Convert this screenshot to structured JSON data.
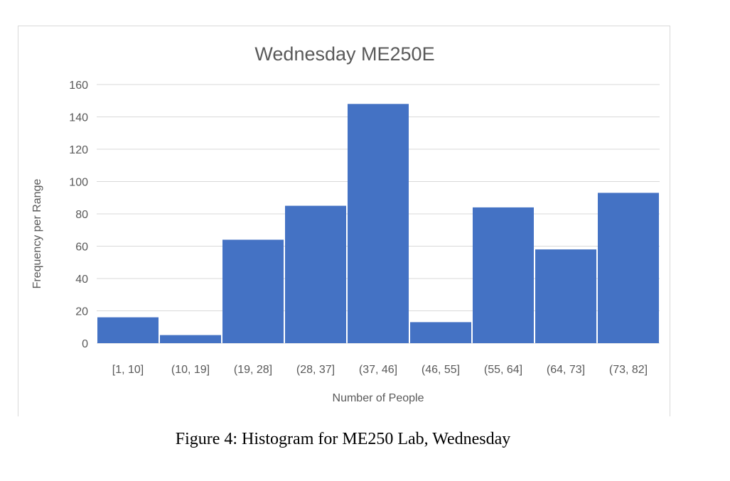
{
  "chart_data": {
    "type": "bar",
    "title": "Wednesday ME250E",
    "xlabel": "Number of People",
    "ylabel": "Frequency per Range",
    "categories": [
      "[1, 10]",
      "(10, 19]",
      "(19, 28]",
      "(28, 37]",
      "(37, 46]",
      "(46, 55]",
      "(55, 64]",
      "(64, 73]",
      "(73, 82]"
    ],
    "values": [
      16,
      5,
      64,
      85,
      148,
      13,
      84,
      58,
      93
    ],
    "ylim": [
      0,
      160
    ],
    "yticks": [
      0,
      20,
      40,
      60,
      80,
      100,
      120,
      140,
      160
    ],
    "grid": true,
    "legend": "none",
    "bar_color": "#4472C4",
    "grid_color": "#d9d9d9"
  },
  "caption": "Figure 4: Histogram for ME250 Lab, Wednesday"
}
